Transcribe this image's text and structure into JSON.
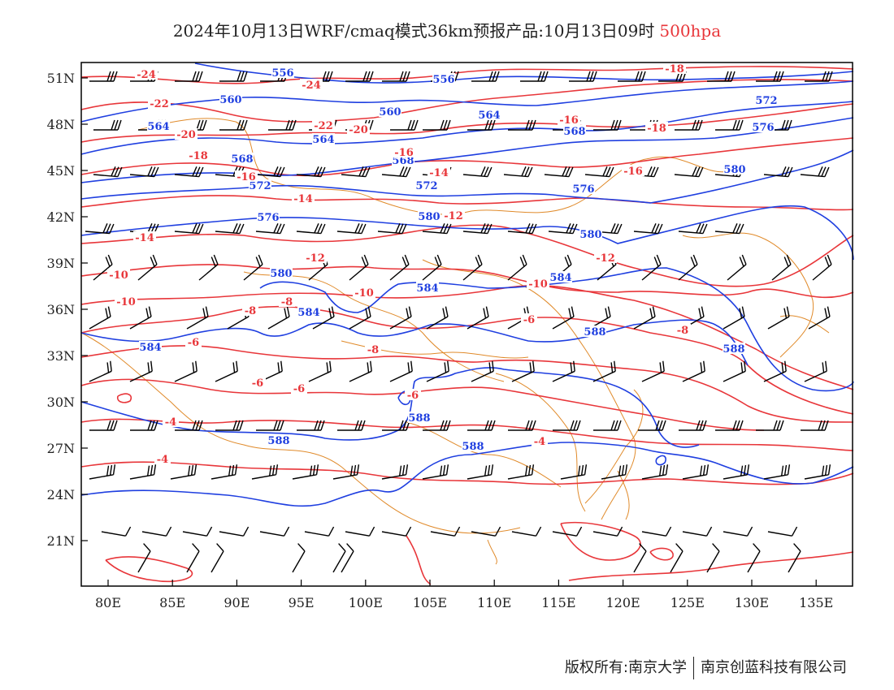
{
  "title": {
    "main": "2024年10月13日WRF/cmaq模式36km预报产品:10月13日09时",
    "level": "500hpa"
  },
  "map": {
    "lon_labels": [
      "80E",
      "85E",
      "90E",
      "95E",
      "100E",
      "105E",
      "110E",
      "115E",
      "120E",
      "125E",
      "130E",
      "135E"
    ],
    "lat_labels": [
      "51N",
      "48N",
      "45N",
      "42N",
      "39N",
      "36N",
      "33N",
      "30N",
      "27N",
      "24N",
      "21N"
    ],
    "lon_range": [
      78,
      138
    ],
    "lat_range": [
      18,
      52
    ],
    "layers": {
      "geopotential_height": {
        "color": "#1f3fe0",
        "unit": "dagpm",
        "labels": [
          "556",
          "556",
          "560",
          "560",
          "564",
          "564",
          "564",
          "568",
          "568",
          "568",
          "572",
          "572",
          "572",
          "576",
          "576",
          "576",
          "580",
          "580",
          "580",
          "580",
          "584",
          "584",
          "584",
          "584",
          "588",
          "588",
          "588",
          "588",
          "588"
        ]
      },
      "temperature": {
        "color": "#e8363a",
        "unit": "°C",
        "labels": [
          "-24",
          "-24",
          "-22",
          "-22",
          "-20",
          "-20",
          "-18",
          "-18",
          "-18",
          "-16",
          "-16",
          "-16",
          "-16",
          "-14",
          "-14",
          "-14",
          "-12",
          "-12",
          "-12",
          "-10",
          "-10",
          "-10",
          "-10",
          "-8",
          "-8",
          "-8",
          "-8",
          "-6",
          "-6",
          "-6",
          "-6",
          "-6",
          "-4",
          "-4",
          "-4"
        ]
      },
      "wind_barbs": {
        "color": "#000000"
      },
      "boundaries": {
        "color": "#e08a2a"
      }
    }
  },
  "footer": {
    "copyright": "版权所有:南京大学",
    "company": "南京创蓝科技有限公司"
  }
}
